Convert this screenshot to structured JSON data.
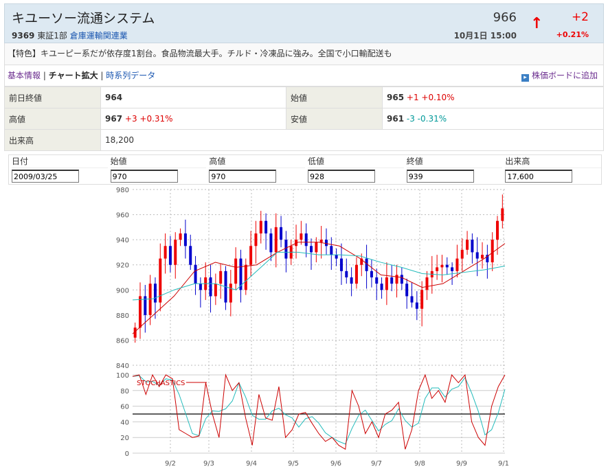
{
  "header": {
    "title": "キユーソー流通システム",
    "code": "9369",
    "market": "東証1部",
    "sector": "倉庫運輸関連業",
    "price": "966",
    "time": "10月1日 15:00",
    "change": "+2",
    "change_pct": "+0.21%",
    "arrow_icon": "up-arrow-icon"
  },
  "description": "【特色】キユーピー系だが依存度1割台。食品物流最大手。チルド・冷凍品に強み。全国で小口輸配送も",
  "nav": {
    "items": [
      "基本情報",
      "チャート拡大",
      "時系列データ"
    ],
    "add_board": "株価ボードに追加"
  },
  "info": {
    "prev_close": {
      "label": "前日終値",
      "value": "964"
    },
    "open": {
      "label": "始値",
      "value": "965",
      "change": "+1 +0.10%"
    },
    "high": {
      "label": "高値",
      "value": "967",
      "change": "+3 +0.31%"
    },
    "low": {
      "label": "安値",
      "value": "961",
      "change": "-3 -0.31%"
    },
    "volume": {
      "label": "出来高",
      "value": "18,200"
    }
  },
  "form": {
    "labels": [
      "日付",
      "始値",
      "高値",
      "低値",
      "終値",
      "出来高"
    ],
    "values": [
      "2009/03/25",
      "970",
      "970",
      "928",
      "939",
      "17,600"
    ]
  },
  "chart_data": {
    "type": "candlestick",
    "price_axis": {
      "ticks": [
        "980",
        "960",
        "940",
        "920",
        "900",
        "880",
        "860",
        "840"
      ],
      "ylim": [
        840,
        980
      ]
    },
    "stoch_axis": {
      "ticks": [
        "100",
        "80",
        "60",
        "40",
        "20",
        "0"
      ],
      "ylim": [
        0,
        100
      ],
      "ref_line": 50
    },
    "x_ticks": [
      "9/2",
      "9/3",
      "9/4",
      "9/5",
      "9/6",
      "9/7",
      "9/8",
      "9/9",
      "9/1"
    ],
    "colors": {
      "up": "#ee0000",
      "down": "#0000cc",
      "ma_short": "#cc0000",
      "ma_long": "#22bbbb"
    },
    "close": [
      870,
      895,
      880,
      905,
      890,
      925,
      935,
      920,
      940,
      945,
      935,
      920,
      905,
      900,
      910,
      895,
      905,
      915,
      890,
      905,
      925,
      900,
      920,
      935,
      945,
      955,
      945,
      930,
      950,
      940,
      925,
      935,
      940,
      945,
      935,
      930,
      938,
      940,
      935,
      928,
      925,
      915,
      910,
      905,
      920,
      925,
      915,
      910,
      905,
      900,
      910,
      905,
      912,
      905,
      895,
      890,
      885,
      900,
      910,
      915,
      918,
      920,
      918,
      915,
      925,
      932,
      940,
      930,
      925,
      928,
      922,
      940,
      955,
      965
    ],
    "ma_short": [
      865,
      880,
      895,
      915,
      922,
      918,
      920,
      930,
      938,
      938,
      935,
      925,
      912,
      910,
      902,
      905,
      915,
      925,
      937
    ],
    "ma_long": [
      892,
      893,
      900,
      905,
      905,
      900,
      915,
      930,
      930,
      928,
      928,
      927,
      922,
      918,
      913,
      912,
      914,
      916,
      919
    ],
    "stoch_label": "STOCHASTICS",
    "stoch_k": [
      98,
      100,
      75,
      100,
      85,
      100,
      95,
      30,
      25,
      20,
      22,
      90,
      50,
      20,
      100,
      80,
      90,
      45,
      10,
      75,
      45,
      42,
      85,
      20,
      30,
      50,
      52,
      38,
      25,
      15,
      20,
      10,
      5,
      80,
      60,
      25,
      40,
      20,
      50,
      55,
      65,
      5,
      30,
      80,
      100,
      70,
      80,
      65,
      100,
      90,
      100,
      40,
      20,
      10,
      60,
      85,
      100
    ]
  }
}
